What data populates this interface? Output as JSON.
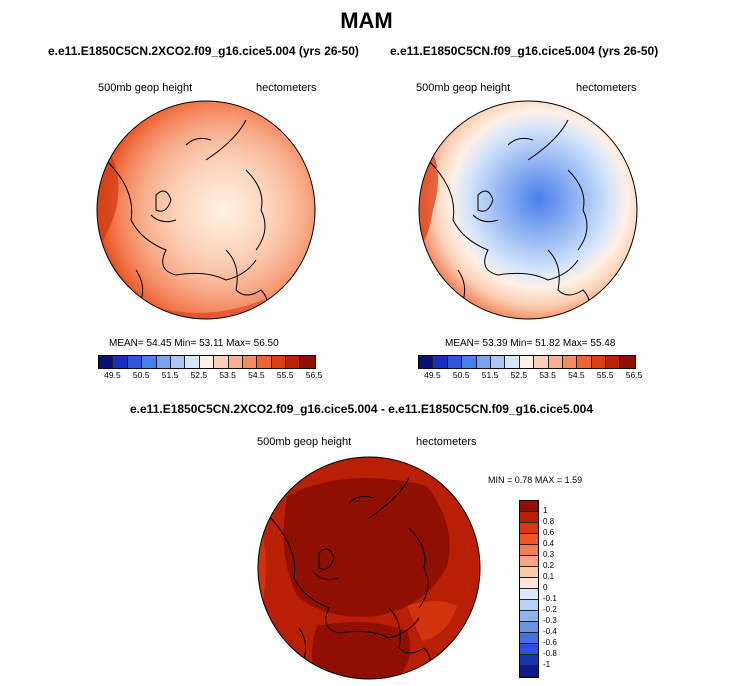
{
  "title": "MAM",
  "panels": [
    {
      "subtitle": "e.e11.E1850C5CN.2XCO2.f09_g16.cice5.004 (yrs 26-50)",
      "field_label": "500mb geop height",
      "units_label": "hectometers",
      "stats": {
        "mean_label": "MEAN=",
        "mean": "54.45",
        "min_label": "Min=",
        "min": "53.11",
        "max_label": "Max=",
        "max": "56.50"
      }
    },
    {
      "subtitle": "e.e11.E1850C5CN.f09_g16.cice5.004 (yrs 26-50)",
      "field_label": "500mb geop height",
      "units_label": "hectometers",
      "stats": {
        "mean_label": "MEAN=",
        "mean": "53.39",
        "min_label": "Min=",
        "min": "51.82",
        "max_label": "Max=",
        "max": "55.48"
      }
    }
  ],
  "abs_colorbar": {
    "colors": [
      "#0a0e7a",
      "#1c2fbe",
      "#2f58df",
      "#4a7ee8",
      "#7aa3f0",
      "#a9c6f5",
      "#d5e5fb",
      "#fff0e5",
      "#fcd0b6",
      "#f9b08f",
      "#f58a63",
      "#ef6336",
      "#dd3d14",
      "#bd2306",
      "#8f1000"
    ],
    "ticks": [
      "49.5",
      "50.5",
      "51.5",
      "52.5",
      "53.5",
      "54.5",
      "55.5",
      "56.5"
    ]
  },
  "diff_panel": {
    "subtitle": "e.e11.E1850C5CN.2XCO2.f09_g16.cice5.004 - e.e11.E1850C5CN.f09_g16.cice5.004",
    "field_label": "500mb geop height",
    "units_label": "hectometers",
    "minmax": {
      "min_label": "MIN =",
      "min": "0.78",
      "max_label": "MAX =",
      "max": "1.59"
    }
  },
  "diff_colorbar": {
    "colors": [
      "#8f1000",
      "#b81f04",
      "#d8380f",
      "#ee5828",
      "#f47f55",
      "#f8a57f",
      "#fbc8a8",
      "#fde6d5",
      "#dce9fa",
      "#b7d0f5",
      "#8fb3ee",
      "#6a93e6",
      "#4772dc",
      "#2c52cc",
      "#1a34b0",
      "#0c1a8a"
    ],
    "ticks": [
      "1",
      "0.8",
      "0.6",
      "0.4",
      "0.3",
      "0.2",
      "0.1",
      "0",
      "-0.1",
      "-0.2",
      "-0.3",
      "-0.4",
      "-0.6",
      "-0.8",
      "-1"
    ]
  }
}
